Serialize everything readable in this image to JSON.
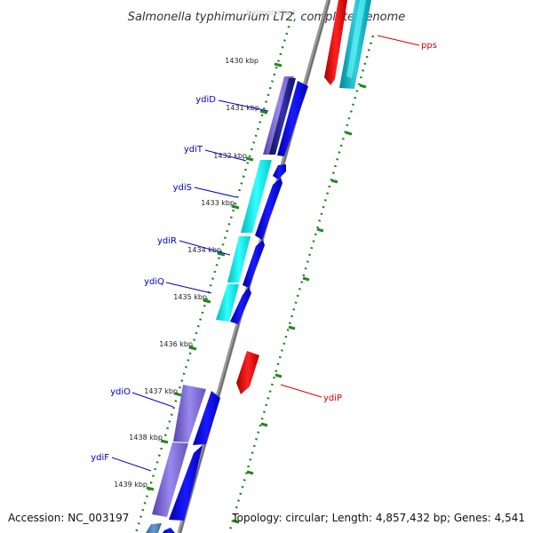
{
  "title": "Salmonella typhimurium LT2, complete genome",
  "partial_text": "Salmonella t",
  "tick_labels": [
    "1430 kbp",
    "1431 kbp",
    "1432 kbp",
    "1433 kbp",
    "1434 kbp",
    "1435 kbp",
    "1436 kbp",
    "1437 kbp",
    "1438 kbp",
    "1439 kbp"
  ],
  "genes_left": [
    {
      "label": "ydiD",
      "color": "#0000cc"
    },
    {
      "label": "ydiT",
      "color": "#0000cc"
    },
    {
      "label": "ydiS",
      "color": "#0000cc"
    },
    {
      "label": "ydiR",
      "color": "#0000cc"
    },
    {
      "label": "ydiQ",
      "color": "#0000cc"
    },
    {
      "label": "ydiO",
      "color": "#0000cc"
    },
    {
      "label": "ydiF",
      "color": "#0000cc"
    }
  ],
  "genes_right": [
    {
      "label": "pps",
      "color": "#dd0000"
    },
    {
      "label": "ydiP",
      "color": "#dd0000"
    }
  ],
  "colors": {
    "forward_cds": "#0000ee",
    "reverse_cds": "#ee0000",
    "cog_cyan": "#00dddd",
    "cog_purple": "#7766cc",
    "cog_dark": "#222288",
    "backbone": "#888888",
    "ticks": "#228822"
  },
  "footer": {
    "accession": "Accession: NC_003197",
    "info": "Topology: circular; Length: 4,857,432 bp; Genes: 4,541"
  }
}
